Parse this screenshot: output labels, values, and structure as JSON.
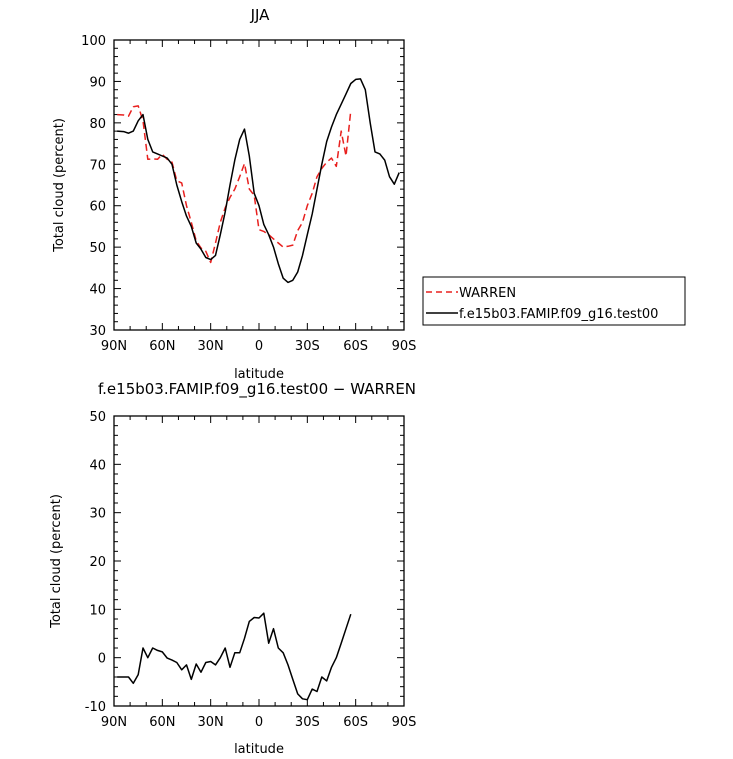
{
  "x_tick_labels": [
    "90N",
    "60N",
    "30N",
    "0",
    "30S",
    "60S",
    "90S"
  ],
  "legend": {
    "warren": "WARREN",
    "model": "f.e15b03.FAMIP.f09_g16.test00"
  },
  "colors": {
    "warren": "#e8201e",
    "model": "#000000"
  },
  "chart_data": [
    {
      "type": "line",
      "title": "JJA",
      "xlabel": "latitude",
      "ylabel": "Total cloud (percent)",
      "xlim": [
        -90,
        90
      ],
      "ylim": [
        30,
        100
      ],
      "yticks": [
        30,
        40,
        50,
        60,
        70,
        80,
        90,
        100
      ],
      "legend_position": "right",
      "series": [
        {
          "name": "WARREN",
          "style": "dashed",
          "x": [
            -88,
            -84,
            -81,
            -78,
            -75,
            -72,
            -69,
            -66,
            -63,
            -60,
            -57,
            -54,
            -51,
            -48,
            -45,
            -42,
            -39,
            -36,
            -33,
            -30,
            -27,
            -24,
            -21,
            -18,
            -15,
            -12,
            -9,
            -6,
            -3,
            0,
            3,
            6,
            9,
            12,
            15,
            18,
            21,
            24,
            27,
            30,
            33,
            36,
            39,
            42,
            45,
            48,
            51,
            54,
            57
          ],
          "y": [
            82,
            81.9,
            81.6,
            83.9,
            84.1,
            80.5,
            71.2,
            71.3,
            71.2,
            72.4,
            71.2,
            70.5,
            66,
            65.5,
            60,
            56,
            51.5,
            49.8,
            49,
            46.3,
            51,
            56,
            59.5,
            62,
            64,
            67,
            70.2,
            64,
            62.5,
            54.2,
            53.8,
            53,
            52,
            51,
            50,
            50.2,
            50.5,
            54,
            56,
            60,
            63,
            67,
            69,
            70.5,
            71.5,
            69.5,
            78,
            72,
            83
          ]
        },
        {
          "name": "f.e15b03.FAMIP.f09_g16.test00",
          "style": "solid",
          "x": [
            -88,
            -84,
            -81,
            -78,
            -75,
            -72,
            -69,
            -66,
            -63,
            -60,
            -57,
            -54,
            -51,
            -48,
            -45,
            -42,
            -39,
            -36,
            -33,
            -30,
            -27,
            -24,
            -21,
            -18,
            -15,
            -12,
            -9,
            -6,
            -3,
            0,
            3,
            6,
            9,
            12,
            15,
            18,
            21,
            24,
            27,
            30,
            33,
            36,
            39,
            42,
            45,
            48,
            51,
            54,
            57,
            60,
            63,
            66,
            69,
            72,
            75,
            78,
            81,
            84,
            87
          ],
          "y": [
            78,
            77.9,
            77.5,
            78,
            80.5,
            82,
            76,
            73,
            72.5,
            72,
            71.5,
            70,
            65,
            61,
            57.5,
            55,
            51,
            49.5,
            47.5,
            47,
            48,
            53,
            58.5,
            65,
            71,
            76,
            78.5,
            72,
            63,
            60,
            55.5,
            53,
            50,
            46,
            42.5,
            41.5,
            42,
            44,
            48,
            53,
            58,
            64,
            70,
            75.5,
            79,
            82,
            84.5,
            87,
            89.5,
            90.5,
            90.6,
            88,
            80,
            73,
            72.5,
            71,
            67,
            65.2,
            68
          ]
        }
      ]
    },
    {
      "type": "line",
      "title": "f.e15b03.FAMIP.f09_g16.test00 − WARREN",
      "xlabel": "latitude",
      "ylabel": "Total cloud (percent)",
      "xlim": [
        -90,
        90
      ],
      "ylim": [
        -10,
        50
      ],
      "yticks": [
        -10,
        0,
        10,
        20,
        30,
        40,
        50
      ],
      "series": [
        {
          "style": "solid",
          "x": [
            -88,
            -84,
            -81,
            -78,
            -75,
            -72,
            -69,
            -66,
            -63,
            -60,
            -57,
            -54,
            -51,
            -48,
            -45,
            -42,
            -39,
            -36,
            -33,
            -30,
            -27,
            -24,
            -21,
            -18,
            -15,
            -12,
            -9,
            -6,
            -3,
            0,
            3,
            6,
            9,
            12,
            15,
            18,
            21,
            24,
            27,
            30,
            33,
            36,
            39,
            42,
            45,
            48,
            51,
            54,
            57
          ],
          "y": [
            -4,
            -4,
            -4,
            -5.3,
            -3.5,
            2,
            0,
            2,
            1.5,
            1.2,
            -0.1,
            -0.5,
            -1,
            -2.5,
            -1.5,
            -4.5,
            -1.3,
            -3,
            -1,
            -0.8,
            -1.5,
            0,
            2,
            -2,
            1,
            1,
            4,
            7.5,
            8.3,
            8.2,
            9.2,
            3,
            6,
            2,
            1,
            -1.5,
            -4.5,
            -7.5,
            -8.5,
            -8.7,
            -6.5,
            -7,
            -4,
            -4.8,
            -2,
            0,
            3,
            6,
            9
          ]
        }
      ]
    }
  ]
}
